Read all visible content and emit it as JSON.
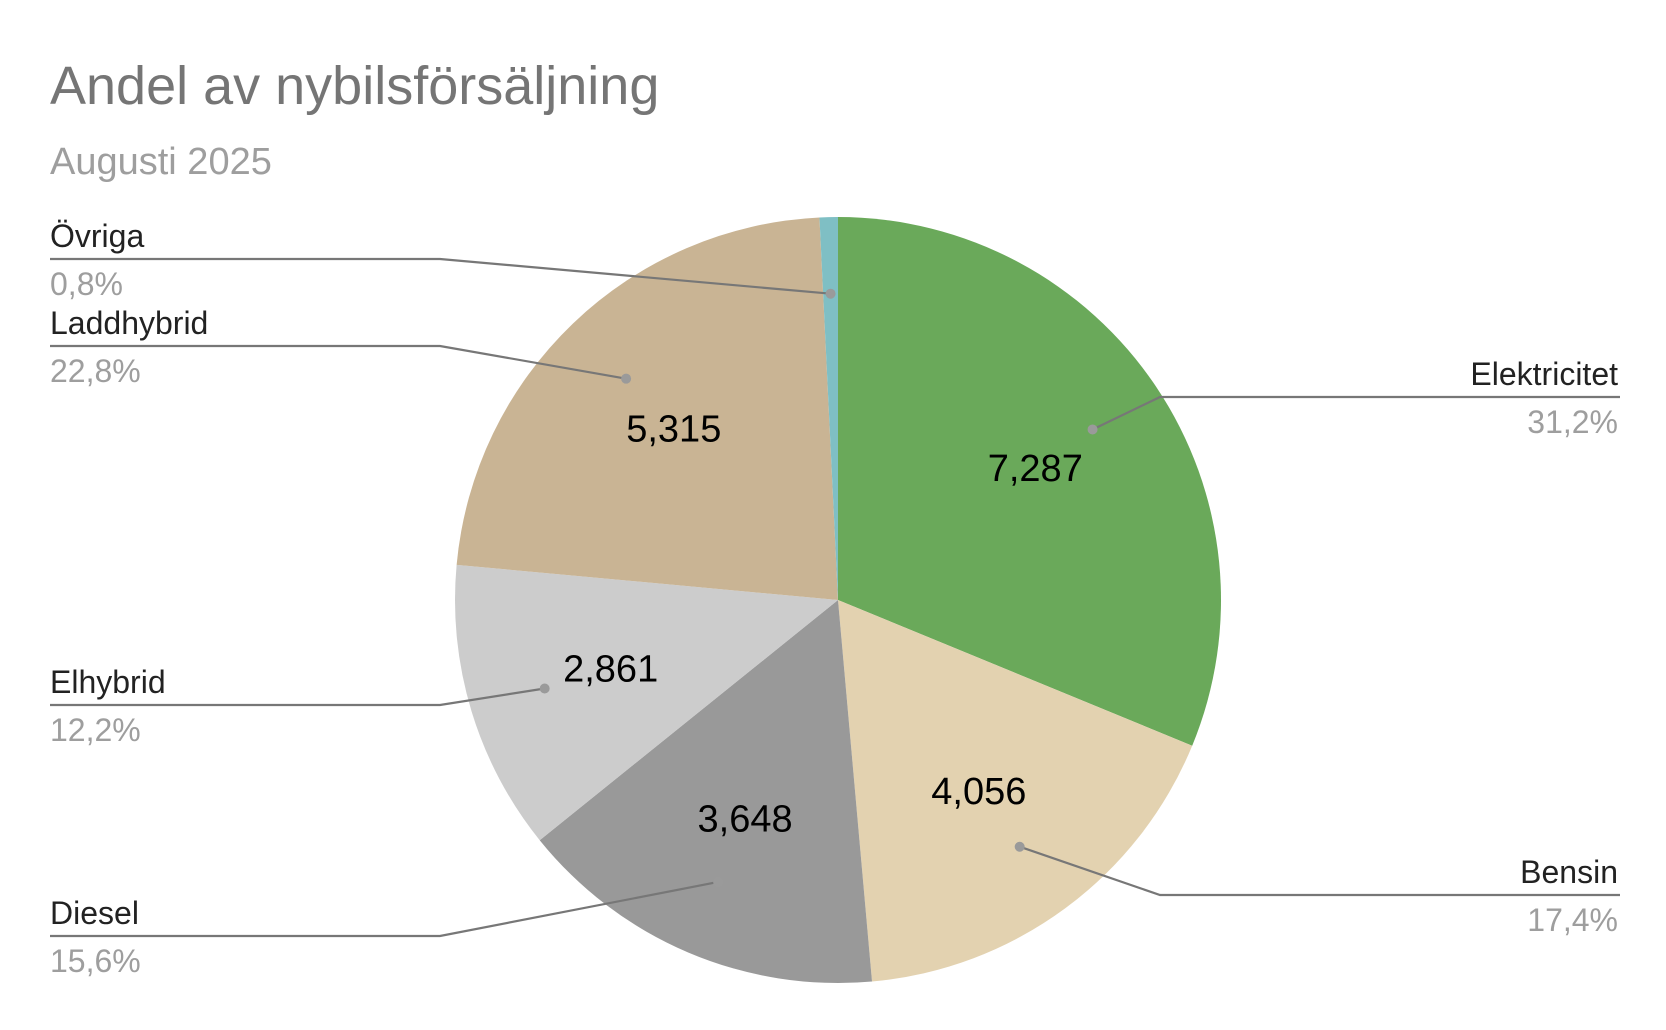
{
  "chart_data": {
    "type": "pie",
    "title": "Andel av nybilsförsäljning",
    "subtitle": "Augusti 2025",
    "slices": [
      {
        "name": "Elektricitet",
        "value": 7287,
        "value_label": "7,287",
        "percent_label": "31,2%",
        "color": "#6aa95a"
      },
      {
        "name": "Bensin",
        "value": 4056,
        "value_label": "4,056",
        "percent_label": "17,4%",
        "color": "#e3d2b0"
      },
      {
        "name": "Diesel",
        "value": 3648,
        "value_label": "3,648",
        "percent_label": "15,6%",
        "color": "#999999"
      },
      {
        "name": "Elhybrid",
        "value": 2861,
        "value_label": "2,861",
        "percent_label": "12,2%",
        "color": "#cccccc"
      },
      {
        "name": "Laddhybrid",
        "value": 5315,
        "value_label": "5,315",
        "percent_label": "22,8%",
        "color": "#c9b494"
      },
      {
        "name": "Övriga",
        "value": 180,
        "value_label": "",
        "percent_label": "0,8%",
        "color": "#7fbfc4"
      }
    ],
    "start_angle": "12 o'clock",
    "direction": "clockwise",
    "legend": "leader-line labels"
  }
}
